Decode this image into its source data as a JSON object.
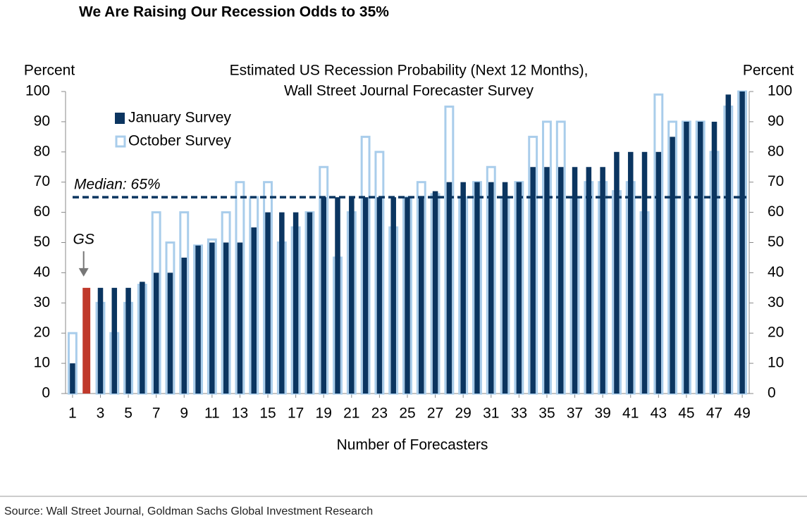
{
  "header": {
    "title": "We Are Raising Our Recession Odds to 35%"
  },
  "source": "Source: Wall Street Journal, Goldman Sachs Global Investment Research",
  "chart_data": {
    "type": "bar",
    "title": [
      "Estimated US Recession Probability (Next 12 Months),",
      "Wall Street Journal Forecaster Survey"
    ],
    "xlabel": "Number of Forecasters",
    "ylabel": "Percent",
    "y2label": "Percent",
    "x": [
      1,
      2,
      3,
      4,
      5,
      6,
      7,
      8,
      9,
      10,
      11,
      12,
      13,
      14,
      15,
      16,
      17,
      18,
      19,
      20,
      21,
      22,
      23,
      24,
      25,
      26,
      27,
      28,
      29,
      30,
      31,
      32,
      33,
      34,
      35,
      36,
      37,
      38,
      39,
      40,
      41,
      42,
      43,
      44,
      45,
      46,
      47,
      48,
      49
    ],
    "xlim": [
      0.5,
      49.5
    ],
    "xticks": [
      1,
      3,
      5,
      7,
      9,
      11,
      13,
      15,
      17,
      19,
      21,
      23,
      25,
      27,
      29,
      31,
      33,
      35,
      37,
      39,
      41,
      43,
      45,
      47,
      49
    ],
    "ylim": [
      0,
      100
    ],
    "yticks": [
      0,
      10,
      20,
      30,
      40,
      50,
      60,
      70,
      80,
      90,
      100
    ],
    "y2lim": [
      0,
      100
    ],
    "y2ticks": [
      0,
      10,
      20,
      30,
      40,
      50,
      60,
      70,
      80,
      90,
      100
    ],
    "legend": "upper left",
    "series": [
      {
        "name": "October Survey",
        "color": "#a9cdeb",
        "style": "outline",
        "values": [
          20,
          null,
          30,
          20,
          30,
          36,
          60,
          50,
          60,
          49,
          51,
          60,
          70,
          65,
          70,
          50,
          55,
          60,
          75,
          45,
          60,
          85,
          80,
          55,
          65,
          70,
          66,
          95,
          65,
          70,
          75,
          65,
          70,
          85,
          90,
          90,
          65,
          70,
          70,
          67,
          70,
          60,
          99,
          90,
          90,
          90,
          80,
          95,
          100
        ]
      },
      {
        "name": "January Survey",
        "color": "#0b3560",
        "style": "solid",
        "values": [
          10,
          35,
          35,
          35,
          35,
          37,
          40,
          40,
          45,
          49,
          50,
          50,
          50,
          55,
          60,
          60,
          60,
          60,
          65,
          65,
          65,
          65,
          65,
          65,
          65,
          65,
          67,
          70,
          70,
          70,
          70,
          70,
          70,
          75,
          75,
          75,
          75,
          75,
          75,
          80,
          80,
          80,
          80,
          85,
          90,
          90,
          90,
          99,
          100
        ]
      }
    ],
    "highlight": {
      "x": 2,
      "color": "#c0392b",
      "label": "GS"
    },
    "median": {
      "value": 65,
      "label": "Median: 65%",
      "color": "#0b3560"
    }
  }
}
